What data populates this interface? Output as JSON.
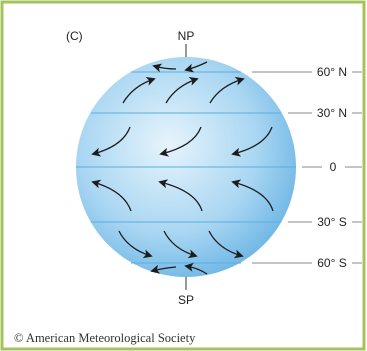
{
  "diagram": {
    "panel_label": "(C)",
    "north_pole_label": "NP",
    "south_pole_label": "SP",
    "latitudes": [
      {
        "label": "60° N",
        "degrees": 60
      },
      {
        "label": "30° N",
        "degrees": 30
      },
      {
        "label": "0",
        "degrees": 0
      },
      {
        "label": "30° S",
        "degrees": -30
      },
      {
        "label": "60° S",
        "degrees": -60
      }
    ],
    "credit": "© American Meteorological Society",
    "colors": {
      "border": "#a3c45a",
      "globe_center": "#e3f3fc",
      "globe_edge": "#6fb8e6",
      "latitude_line": "#5aaee0",
      "arrow": "#1c1c1c",
      "leader_line": "#8a8a8a"
    }
  }
}
